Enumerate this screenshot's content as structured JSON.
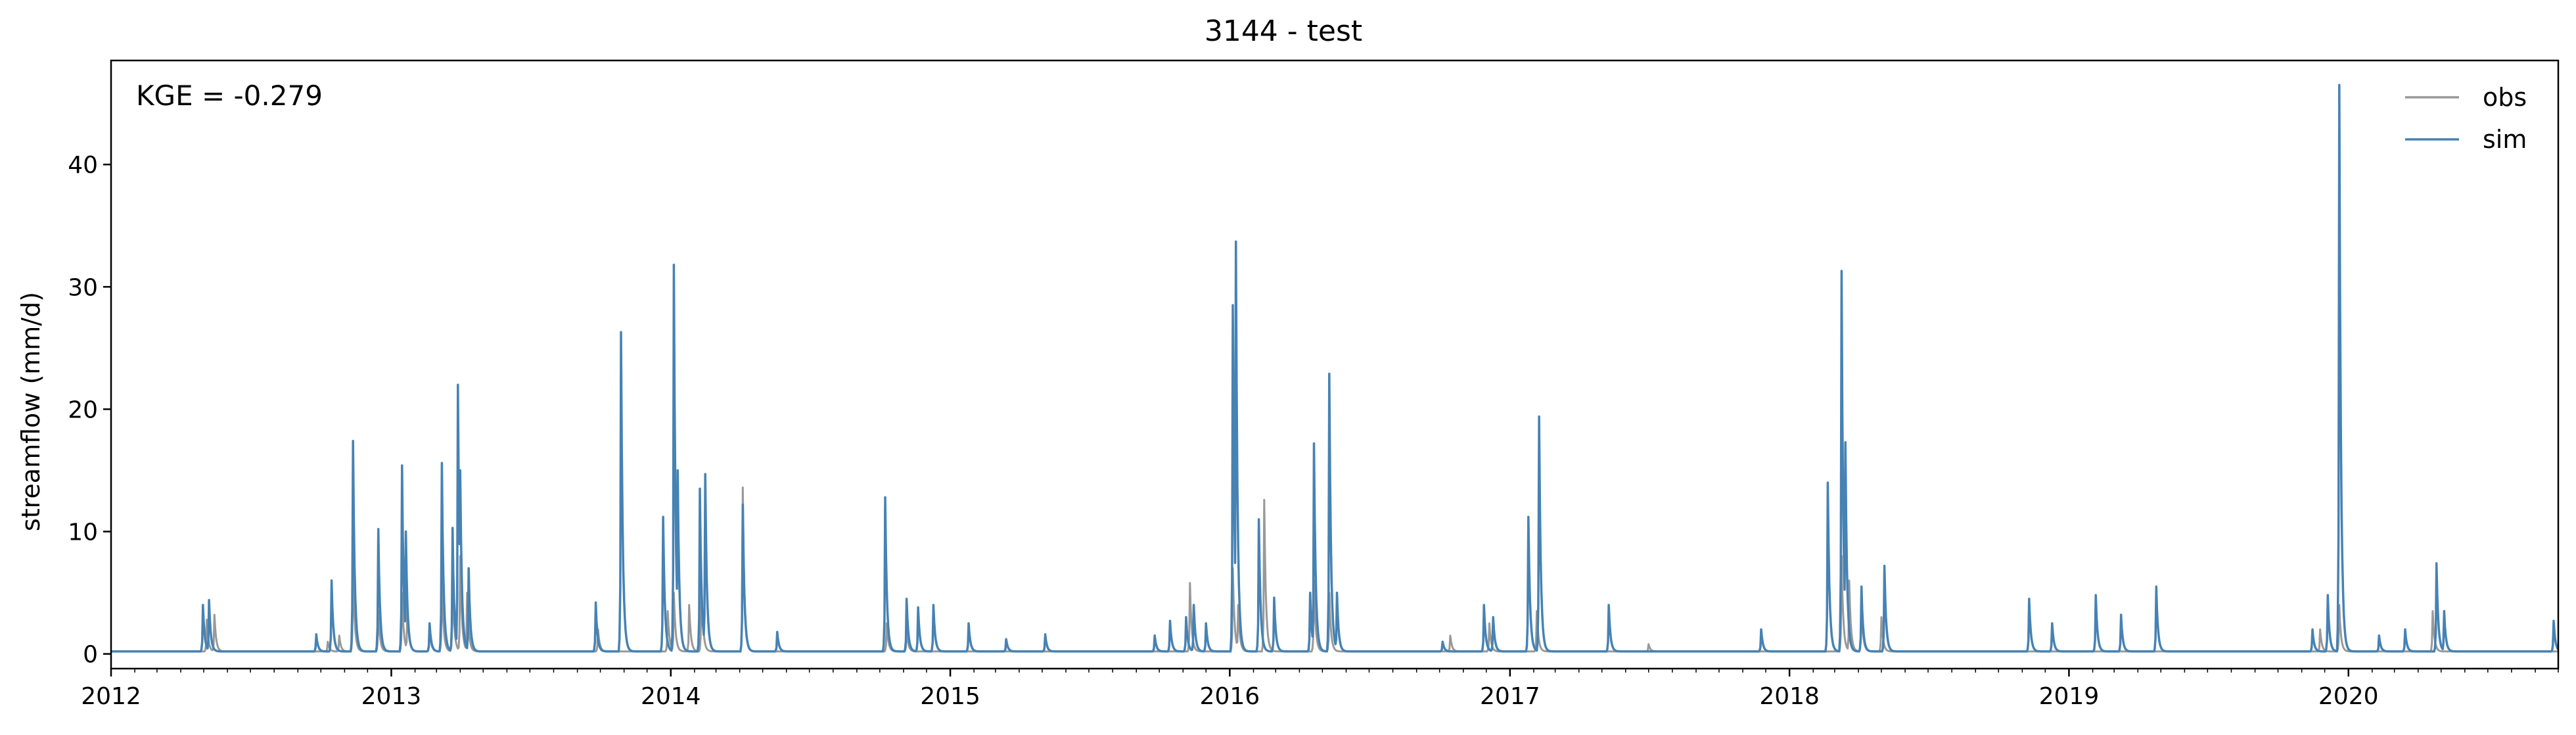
{
  "chart_data": {
    "type": "line",
    "title": "3144 - test",
    "xlabel": "",
    "ylabel": "streamflow (mm/d)",
    "annotation": "KGE = -0.279",
    "xlim": [
      "2012-01-01",
      "2020-10-01"
    ],
    "ylim": [
      -1.2,
      48.5
    ],
    "x_ticks": [
      "2012",
      "2013",
      "2014",
      "2015",
      "2016",
      "2017",
      "2018",
      "2019",
      "2020"
    ],
    "y_ticks": [
      0,
      10,
      20,
      30,
      40
    ],
    "legend_position": "top-right",
    "grid": false,
    "baseline": 0.2,
    "series": [
      {
        "name": "obs",
        "color": "#999999",
        "peaks": [
          {
            "x": "2012-05-05",
            "y": 2.8
          },
          {
            "x": "2012-05-15",
            "y": 3.2
          },
          {
            "x": "2012-10-10",
            "y": 1.0
          },
          {
            "x": "2012-10-25",
            "y": 1.5
          },
          {
            "x": "2012-11-12",
            "y": 7.0
          },
          {
            "x": "2012-12-15",
            "y": 3.5
          },
          {
            "x": "2013-01-15",
            "y": 5.0
          },
          {
            "x": "2013-01-22",
            "y": 4.0
          },
          {
            "x": "2013-02-20",
            "y": 2.0
          },
          {
            "x": "2013-03-08",
            "y": 6.0
          },
          {
            "x": "2013-03-22",
            "y": 6.0
          },
          {
            "x": "2013-04-01",
            "y": 8.0
          },
          {
            "x": "2013-04-10",
            "y": 5.0
          },
          {
            "x": "2013-09-28",
            "y": 2.0
          },
          {
            "x": "2013-12-28",
            "y": 3.5
          },
          {
            "x": "2014-01-05",
            "y": 5.0
          },
          {
            "x": "2014-01-25",
            "y": 4.0
          },
          {
            "x": "2014-02-10",
            "y": 6.0
          },
          {
            "x": "2014-04-05",
            "y": 13.6
          },
          {
            "x": "2014-10-10",
            "y": 2.5
          },
          {
            "x": "2014-11-05",
            "y": 2.0
          },
          {
            "x": "2015-11-10",
            "y": 5.8
          },
          {
            "x": "2016-01-05",
            "y": 7.0
          },
          {
            "x": "2016-01-12",
            "y": 4.0
          },
          {
            "x": "2016-02-15",
            "y": 12.6
          },
          {
            "x": "2016-04-20",
            "y": 6.0
          },
          {
            "x": "2016-05-10",
            "y": 5.0
          },
          {
            "x": "2016-10-15",
            "y": 1.5
          },
          {
            "x": "2016-12-05",
            "y": 2.5
          },
          {
            "x": "2017-02-05",
            "y": 3.5
          },
          {
            "x": "2017-07-01",
            "y": 0.8
          },
          {
            "x": "2018-03-10",
            "y": 8.0
          },
          {
            "x": "2018-03-20",
            "y": 6.0
          },
          {
            "x": "2018-04-05",
            "y": 4.0
          },
          {
            "x": "2018-05-01",
            "y": 3.0
          },
          {
            "x": "2019-11-25",
            "y": 2.0
          },
          {
            "x": "2019-12-20",
            "y": 4.0
          },
          {
            "x": "2020-04-20",
            "y": 3.5
          }
        ]
      },
      {
        "name": "sim",
        "color": "#4682b4",
        "peaks": [
          {
            "x": "2012-04-30",
            "y": 4.0
          },
          {
            "x": "2012-05-08",
            "y": 4.4
          },
          {
            "x": "2012-09-25",
            "y": 1.6
          },
          {
            "x": "2012-10-15",
            "y": 6.0
          },
          {
            "x": "2012-11-12",
            "y": 17.4
          },
          {
            "x": "2012-12-15",
            "y": 10.2
          },
          {
            "x": "2013-01-15",
            "y": 15.4
          },
          {
            "x": "2013-01-20",
            "y": 10.0
          },
          {
            "x": "2013-02-20",
            "y": 2.5
          },
          {
            "x": "2013-03-08",
            "y": 15.6
          },
          {
            "x": "2013-03-22",
            "y": 10.3
          },
          {
            "x": "2013-03-29",
            "y": 22.0
          },
          {
            "x": "2013-04-01",
            "y": 15.0
          },
          {
            "x": "2013-04-12",
            "y": 7.0
          },
          {
            "x": "2013-09-25",
            "y": 4.2
          },
          {
            "x": "2013-10-28",
            "y": 26.3
          },
          {
            "x": "2013-12-22",
            "y": 11.2
          },
          {
            "x": "2014-01-05",
            "y": 31.8
          },
          {
            "x": "2014-01-10",
            "y": 15.0
          },
          {
            "x": "2014-02-08",
            "y": 13.5
          },
          {
            "x": "2014-02-15",
            "y": 14.7
          },
          {
            "x": "2014-04-05",
            "y": 12.2
          },
          {
            "x": "2014-05-20",
            "y": 1.8
          },
          {
            "x": "2014-10-08",
            "y": 12.8
          },
          {
            "x": "2014-11-05",
            "y": 4.5
          },
          {
            "x": "2014-11-20",
            "y": 3.8
          },
          {
            "x": "2014-12-10",
            "y": 4.0
          },
          {
            "x": "2015-01-25",
            "y": 2.5
          },
          {
            "x": "2015-03-15",
            "y": 1.2
          },
          {
            "x": "2015-05-05",
            "y": 1.6
          },
          {
            "x": "2015-09-25",
            "y": 1.5
          },
          {
            "x": "2015-10-15",
            "y": 2.7
          },
          {
            "x": "2015-11-05",
            "y": 3.0
          },
          {
            "x": "2015-11-15",
            "y": 4.0
          },
          {
            "x": "2015-12-01",
            "y": 2.5
          },
          {
            "x": "2016-01-05",
            "y": 28.5
          },
          {
            "x": "2016-01-09",
            "y": 33.7
          },
          {
            "x": "2016-02-08",
            "y": 11.0
          },
          {
            "x": "2016-02-28",
            "y": 4.6
          },
          {
            "x": "2016-04-15",
            "y": 5.0
          },
          {
            "x": "2016-04-20",
            "y": 17.2
          },
          {
            "x": "2016-05-10",
            "y": 22.9
          },
          {
            "x": "2016-05-20",
            "y": 5.0
          },
          {
            "x": "2016-10-05",
            "y": 1.0
          },
          {
            "x": "2016-11-28",
            "y": 4.0
          },
          {
            "x": "2016-12-10",
            "y": 3.0
          },
          {
            "x": "2017-01-25",
            "y": 11.2
          },
          {
            "x": "2017-02-08",
            "y": 19.4
          },
          {
            "x": "2017-05-10",
            "y": 4.0
          },
          {
            "x": "2017-11-25",
            "y": 2.0
          },
          {
            "x": "2018-02-20",
            "y": 14.0
          },
          {
            "x": "2018-03-10",
            "y": 31.3
          },
          {
            "x": "2018-03-15",
            "y": 17.3
          },
          {
            "x": "2018-04-05",
            "y": 5.5
          },
          {
            "x": "2018-05-05",
            "y": 7.2
          },
          {
            "x": "2018-11-10",
            "y": 4.5
          },
          {
            "x": "2018-12-10",
            "y": 2.5
          },
          {
            "x": "2019-02-05",
            "y": 4.8
          },
          {
            "x": "2019-03-10",
            "y": 3.2
          },
          {
            "x": "2019-04-25",
            "y": 5.5
          },
          {
            "x": "2019-11-15",
            "y": 2.0
          },
          {
            "x": "2019-12-05",
            "y": 4.8
          },
          {
            "x": "2019-12-20",
            "y": 46.5
          },
          {
            "x": "2020-02-10",
            "y": 1.5
          },
          {
            "x": "2020-03-15",
            "y": 2.0
          },
          {
            "x": "2020-04-25",
            "y": 7.4
          },
          {
            "x": "2020-05-05",
            "y": 3.5
          },
          {
            "x": "2020-09-25",
            "y": 2.7
          }
        ]
      }
    ]
  }
}
